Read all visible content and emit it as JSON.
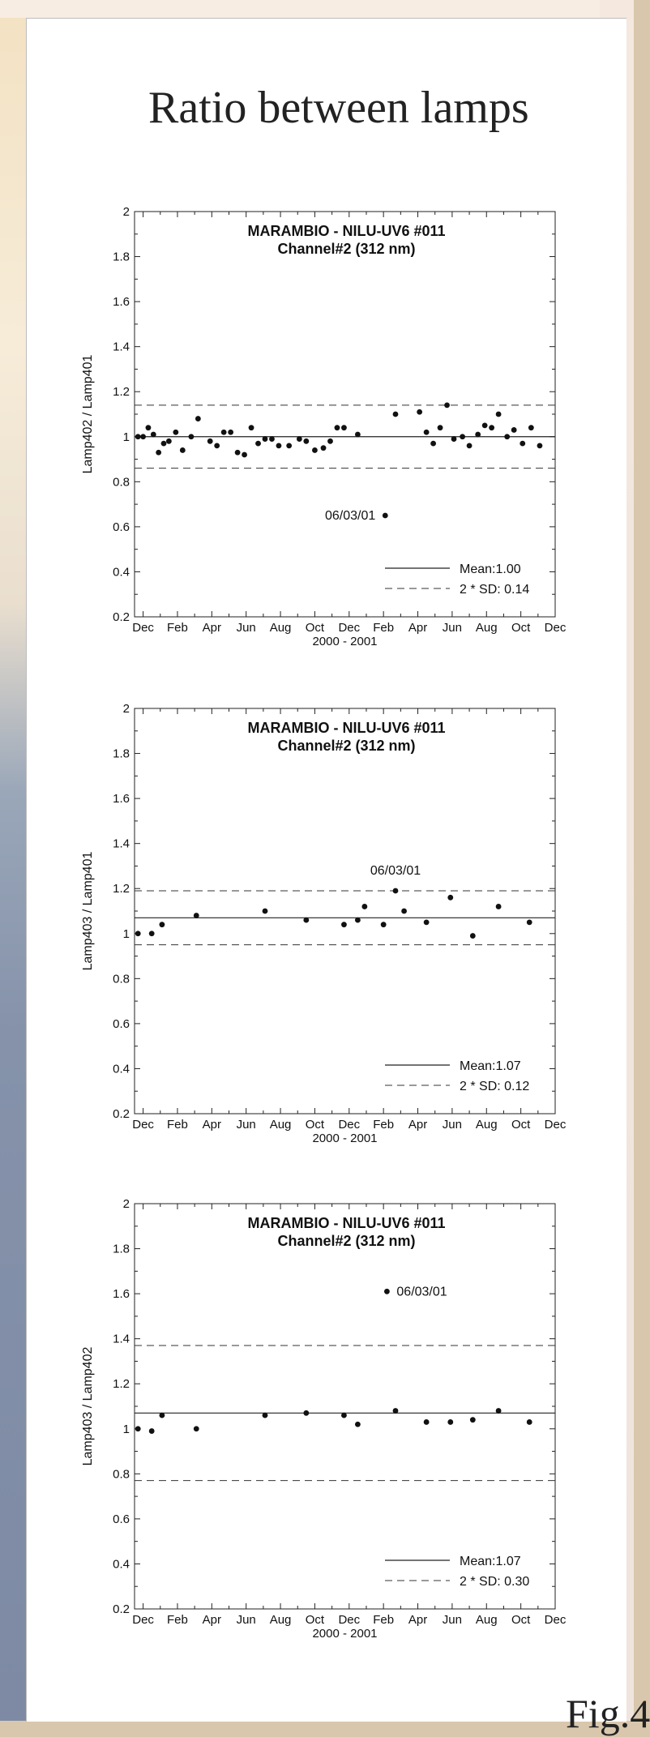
{
  "slide": {
    "title": "Ratio between lamps",
    "fig_label": "Fig.4"
  },
  "chart_data": [
    {
      "type": "scatter",
      "title": "MARAMBIO - NILU-UV6 #011",
      "subtitle": "Channel#2 (312 nm)",
      "xlabel": "2000 - 2001",
      "ylabel": "Lamp402 / Lamp401",
      "x_ticks": [
        "Dec",
        "Feb",
        "Apr",
        "Jun",
        "Aug",
        "Oct",
        "Dec",
        "Feb",
        "Apr",
        "Jun",
        "Aug",
        "Oct",
        "Dec"
      ],
      "y_ticks": [
        "0.2",
        "0.4",
        "0.6",
        "0.8",
        "1",
        "1.2",
        "1.4",
        "1.6",
        "1.8",
        "2"
      ],
      "ylim": [
        0.2,
        2
      ],
      "xlim": [
        0,
        24.5
      ],
      "mean": 1.0,
      "upper": 1.14,
      "lower": 0.86,
      "legend": {
        "mean_label": "Mean:1.00",
        "sd_label": "2 * SD: 0.14",
        "position": "bottom-right"
      },
      "annotation": {
        "text": "06/03/01",
        "x": 14.6,
        "y": 0.65
      },
      "points": [
        {
          "x": 0.2,
          "y": 1.0
        },
        {
          "x": 0.5,
          "y": 1.0
        },
        {
          "x": 0.8,
          "y": 1.04
        },
        {
          "x": 1.1,
          "y": 1.01
        },
        {
          "x": 1.4,
          "y": 0.93
        },
        {
          "x": 1.7,
          "y": 0.97
        },
        {
          "x": 2.0,
          "y": 0.98
        },
        {
          "x": 2.4,
          "y": 1.02
        },
        {
          "x": 2.8,
          "y": 0.94
        },
        {
          "x": 3.3,
          "y": 1.0
        },
        {
          "x": 3.7,
          "y": 1.08
        },
        {
          "x": 4.4,
          "y": 0.98
        },
        {
          "x": 4.8,
          "y": 0.96
        },
        {
          "x": 5.2,
          "y": 1.02
        },
        {
          "x": 5.6,
          "y": 1.02
        },
        {
          "x": 6.0,
          "y": 0.93
        },
        {
          "x": 6.4,
          "y": 0.92
        },
        {
          "x": 6.8,
          "y": 1.04
        },
        {
          "x": 7.2,
          "y": 0.97
        },
        {
          "x": 7.6,
          "y": 0.99
        },
        {
          "x": 8.0,
          "y": 0.99
        },
        {
          "x": 8.4,
          "y": 0.96
        },
        {
          "x": 9.0,
          "y": 0.96
        },
        {
          "x": 9.6,
          "y": 0.99
        },
        {
          "x": 10.0,
          "y": 0.98
        },
        {
          "x": 10.5,
          "y": 0.94
        },
        {
          "x": 11.0,
          "y": 0.95
        },
        {
          "x": 11.4,
          "y": 0.98
        },
        {
          "x": 11.8,
          "y": 1.04
        },
        {
          "x": 12.2,
          "y": 1.04
        },
        {
          "x": 13.0,
          "y": 1.01
        },
        {
          "x": 14.6,
          "y": 0.65
        },
        {
          "x": 15.2,
          "y": 1.1
        },
        {
          "x": 16.6,
          "y": 1.11
        },
        {
          "x": 17.0,
          "y": 1.02
        },
        {
          "x": 17.4,
          "y": 0.97
        },
        {
          "x": 17.8,
          "y": 1.04
        },
        {
          "x": 18.2,
          "y": 1.14
        },
        {
          "x": 18.6,
          "y": 0.99
        },
        {
          "x": 19.1,
          "y": 1.0
        },
        {
          "x": 19.5,
          "y": 0.96
        },
        {
          "x": 20.0,
          "y": 1.01
        },
        {
          "x": 20.4,
          "y": 1.05
        },
        {
          "x": 20.8,
          "y": 1.04
        },
        {
          "x": 21.2,
          "y": 1.1
        },
        {
          "x": 21.7,
          "y": 1.0
        },
        {
          "x": 22.1,
          "y": 1.03
        },
        {
          "x": 22.6,
          "y": 0.97
        },
        {
          "x": 23.1,
          "y": 1.04
        },
        {
          "x": 23.6,
          "y": 0.96
        }
      ]
    },
    {
      "type": "scatter",
      "title": "MARAMBIO - NILU-UV6 #011",
      "subtitle": "Channel#2 (312 nm)",
      "xlabel": "2000 - 2001",
      "ylabel": "Lamp403 / Lamp401",
      "x_ticks": [
        "Dec",
        "Feb",
        "Apr",
        "Jun",
        "Aug",
        "Oct",
        "Dec",
        "Feb",
        "Apr",
        "Jun",
        "Aug",
        "Oct",
        "Dec"
      ],
      "y_ticks": [
        "0.2",
        "0.4",
        "0.6",
        "0.8",
        "1",
        "1.2",
        "1.4",
        "1.6",
        "1.8",
        "2"
      ],
      "ylim": [
        0.2,
        2
      ],
      "xlim": [
        0,
        24.5
      ],
      "mean": 1.07,
      "upper": 1.19,
      "lower": 0.95,
      "legend": {
        "mean_label": "Mean:1.07",
        "sd_label": "2 * SD: 0.12",
        "position": "bottom-right"
      },
      "annotation": {
        "text": "06/03/01",
        "x": 15.2,
        "y": 1.19
      },
      "points": [
        {
          "x": 0.2,
          "y": 1.0
        },
        {
          "x": 1.0,
          "y": 1.0
        },
        {
          "x": 1.6,
          "y": 1.04
        },
        {
          "x": 3.6,
          "y": 1.08
        },
        {
          "x": 7.6,
          "y": 1.1
        },
        {
          "x": 10.0,
          "y": 1.06
        },
        {
          "x": 12.2,
          "y": 1.04
        },
        {
          "x": 13.0,
          "y": 1.06
        },
        {
          "x": 13.4,
          "y": 1.12
        },
        {
          "x": 14.5,
          "y": 1.04
        },
        {
          "x": 15.2,
          "y": 1.19
        },
        {
          "x": 15.7,
          "y": 1.1
        },
        {
          "x": 17.0,
          "y": 1.05
        },
        {
          "x": 18.4,
          "y": 1.16
        },
        {
          "x": 19.7,
          "y": 0.99
        },
        {
          "x": 21.2,
          "y": 1.12
        },
        {
          "x": 23.0,
          "y": 1.05
        }
      ]
    },
    {
      "type": "scatter",
      "title": "MARAMBIO - NILU-UV6 #011",
      "subtitle": "Channel#2 (312 nm)",
      "xlabel": "2000 - 2001",
      "ylabel": "Lamp403 / Lamp402",
      "x_ticks": [
        "Dec",
        "Feb",
        "Apr",
        "Jun",
        "Aug",
        "Oct",
        "Dec",
        "Feb",
        "Apr",
        "Jun",
        "Aug",
        "Oct",
        "Dec"
      ],
      "y_ticks": [
        "0.2",
        "0.4",
        "0.6",
        "0.8",
        "1",
        "1.2",
        "1.4",
        "1.6",
        "1.8",
        "2"
      ],
      "ylim": [
        0.2,
        2
      ],
      "xlim": [
        0,
        24.5
      ],
      "mean": 1.07,
      "upper": 1.37,
      "lower": 0.77,
      "legend": {
        "mean_label": "Mean:1.07",
        "sd_label": "2 * SD: 0.30",
        "position": "bottom-right"
      },
      "annotation": {
        "text": "06/03/01",
        "x": 14.7,
        "y": 1.61
      },
      "points": [
        {
          "x": 0.2,
          "y": 1.0
        },
        {
          "x": 1.0,
          "y": 0.99
        },
        {
          "x": 1.6,
          "y": 1.06
        },
        {
          "x": 3.6,
          "y": 1.0
        },
        {
          "x": 7.6,
          "y": 1.06
        },
        {
          "x": 10.0,
          "y": 1.07
        },
        {
          "x": 12.2,
          "y": 1.06
        },
        {
          "x": 13.0,
          "y": 1.02
        },
        {
          "x": 14.7,
          "y": 1.61
        },
        {
          "x": 15.2,
          "y": 1.08
        },
        {
          "x": 17.0,
          "y": 1.03
        },
        {
          "x": 18.4,
          "y": 1.03
        },
        {
          "x": 19.7,
          "y": 1.04
        },
        {
          "x": 21.2,
          "y": 1.08
        },
        {
          "x": 23.0,
          "y": 1.03
        }
      ]
    }
  ]
}
